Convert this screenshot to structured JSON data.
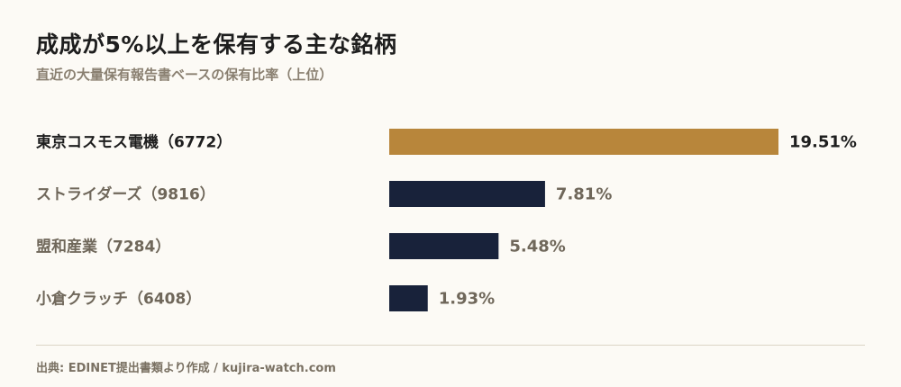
{
  "header": {
    "title": "成成が5%以上を保有する主な銘柄",
    "subtitle": "直近の大量保有報告書ベースの保有比率（上位）"
  },
  "colors": {
    "highlight": "#b8863b",
    "bar": "#18223a",
    "highlight_text": "#1e1e1e",
    "muted_text": "#6f675a"
  },
  "chart_data": {
    "type": "bar",
    "orientation": "horizontal",
    "categories": [
      "東京コスモス電機（6772）",
      "ストライダーズ（9816）",
      "盟和産業（7284）",
      "小倉クラッチ（6408）"
    ],
    "values": [
      19.51,
      7.81,
      5.48,
      1.93
    ],
    "value_labels": [
      "19.51%",
      "7.81%",
      "5.48%",
      "1.93%"
    ],
    "highlight_index": 0,
    "unit": "%",
    "xlim": [
      0,
      19.51
    ],
    "grid": false,
    "legend": "none"
  },
  "footer": {
    "source": "出典: EDINET提出書類より作成 / kujira-watch.com"
  }
}
